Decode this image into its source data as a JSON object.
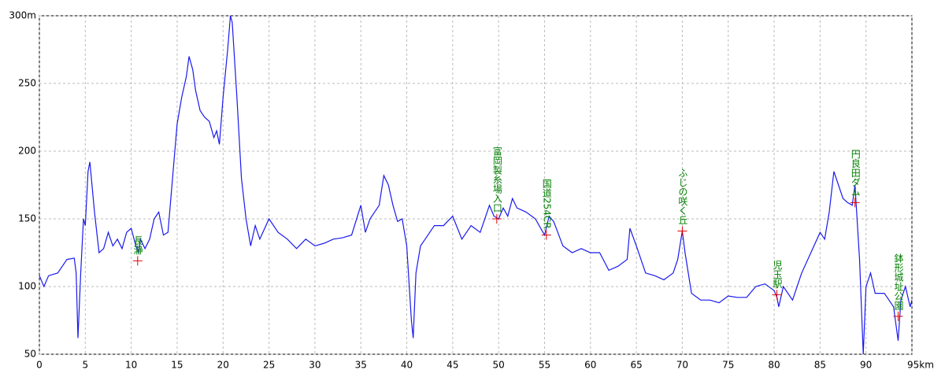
{
  "chart_data": {
    "type": "line",
    "x": [
      0,
      0.5,
      1,
      2,
      3,
      3.8,
      4,
      4.2,
      4.5,
      4.8,
      5,
      5.3,
      5.5,
      6,
      6.5,
      7,
      7.5,
      8,
      8.5,
      9,
      9.5,
      10,
      10.5,
      10.8,
      11,
      11.5,
      12,
      12.5,
      13,
      13.5,
      14,
      14.5,
      15,
      15.5,
      16,
      16.3,
      16.7,
      17,
      17.5,
      18,
      18.5,
      19,
      19.3,
      19.6,
      20,
      20.5,
      20.8,
      21,
      21.5,
      22,
      22.5,
      23,
      23.5,
      24,
      25,
      26,
      27,
      28,
      29,
      30,
      31,
      32,
      33,
      34,
      35,
      35.5,
      36,
      37,
      37.5,
      38,
      38.5,
      39,
      39.5,
      40,
      40.5,
      40.7,
      41,
      41.5,
      42,
      43,
      44,
      45,
      46,
      47,
      48,
      49,
      49.5,
      50,
      50.5,
      51,
      51.5,
      52,
      53,
      54,
      55,
      55.5,
      56,
      57,
      58,
      59,
      60,
      61,
      62,
      63,
      64,
      64.3,
      65,
      66,
      67,
      68,
      69,
      69.5,
      70,
      70.3,
      71,
      72,
      73,
      74,
      75,
      76,
      77,
      78,
      79,
      80,
      80.3,
      80.5,
      81,
      82,
      83,
      84,
      85,
      85.5,
      86,
      86.5,
      87,
      87.5,
      88,
      88.5,
      88.8,
      89.3,
      89.7,
      90,
      90.5,
      91,
      92,
      93,
      93.5,
      93.8,
      94.3,
      94.8,
      95
    ],
    "series": [
      {
        "color": "#1a1aee",
        "values": [
          108,
          100,
          108,
          110,
          120,
          121,
          110,
          62,
          110,
          150,
          145,
          185,
          192,
          155,
          125,
          128,
          140,
          130,
          135,
          128,
          140,
          143,
          130,
          125,
          135,
          128,
          135,
          150,
          155,
          138,
          140,
          180,
          220,
          240,
          255,
          270,
          260,
          245,
          230,
          225,
          222,
          210,
          215,
          205,
          240,
          275,
          300,
          295,
          240,
          180,
          150,
          130,
          145,
          135,
          150,
          140,
          135,
          128,
          135,
          130,
          132,
          135,
          136,
          138,
          160,
          140,
          150,
          160,
          182,
          175,
          160,
          148,
          150,
          130,
          75,
          62,
          110,
          130,
          135,
          145,
          145,
          152,
          135,
          145,
          140,
          160,
          152,
          150,
          158,
          152,
          165,
          158,
          155,
          150,
          138,
          152,
          148,
          130,
          125,
          128,
          125,
          125,
          112,
          115,
          120,
          143,
          130,
          110,
          108,
          105,
          110,
          120,
          141,
          125,
          95,
          90,
          90,
          88,
          93,
          92,
          92,
          100,
          102,
          97,
          92,
          85,
          100,
          90,
          110,
          125,
          140,
          135,
          155,
          185,
          175,
          165,
          162,
          160,
          175,
          120,
          50,
          100,
          110,
          95,
          95,
          85,
          60,
          90,
          100,
          85,
          90
        ]
      }
    ],
    "markers": [
      {
        "label": "長瀞",
        "x": 10.7,
        "y": 119
      },
      {
        "label": "富岡製糸場入口",
        "x": 49.8,
        "y": 150
      },
      {
        "label": "国道254CR",
        "x": 55.2,
        "y": 138
      },
      {
        "label": "ふじの咲く丘",
        "x": 70,
        "y": 141
      },
      {
        "label": "児玉駅",
        "x": 80.3,
        "y": 94
      },
      {
        "label": "円良田ダム",
        "x": 88.8,
        "y": 162
      },
      {
        "label": "鉢形城址公園",
        "x": 93.5,
        "y": 78
      }
    ],
    "marker_color": "#e00000",
    "label_color": "#008000",
    "xlim": [
      0,
      95
    ],
    "ylim": [
      50,
      300
    ],
    "xticks": [
      0,
      5,
      10,
      15,
      20,
      25,
      30,
      35,
      40,
      45,
      50,
      55,
      60,
      65,
      70,
      75,
      80,
      85,
      90,
      {
        "value": 95,
        "label": "95km"
      }
    ],
    "yticks": [
      50,
      100,
      150,
      200,
      250,
      {
        "value": 300,
        "label": "300m"
      }
    ],
    "grid": true
  }
}
